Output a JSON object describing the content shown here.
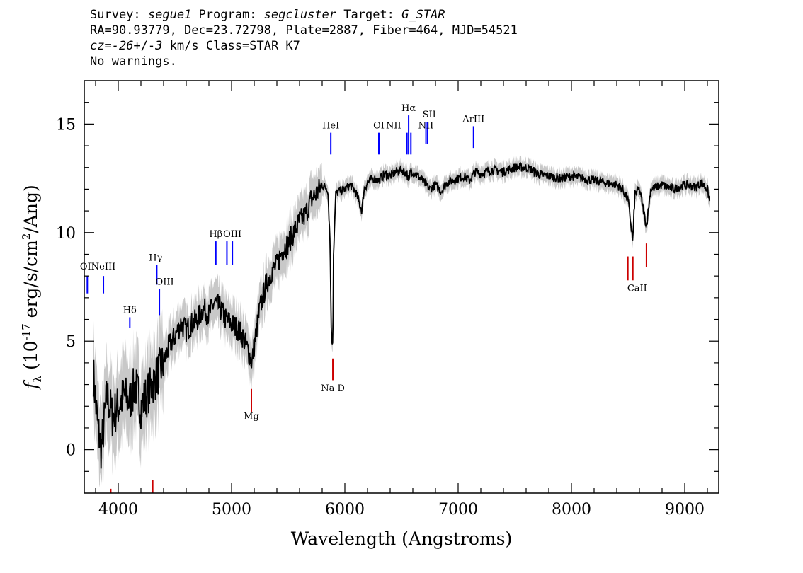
{
  "header": {
    "line1": {
      "survey_label": "Survey: ",
      "survey_value": "segue1",
      "program_label": " Program: ",
      "program_value": "segcluster",
      "target_label": " Target: ",
      "target_value": "G_STAR"
    },
    "line2": "RA=90.93779, Dec=23.72798, Plate=2887, Fiber=464, MJD=54521",
    "line3": {
      "cz_label": "cz",
      "cz_eq": "=",
      "cz_value": "-26",
      "cz_pm": "+/-",
      "cz_err": "3",
      "cz_rest": " km/s Class=STAR K7"
    },
    "line4": "No warnings."
  },
  "chart_data": {
    "type": "line",
    "xlabel": "Wavelength (Angstroms)",
    "ylabel_prefix": "f",
    "ylabel_sub": "λ",
    "ylabel_rest": " (10",
    "ylabel_exp": "-17",
    "ylabel_units": " erg/s/cm",
    "ylabel_exp2": "2",
    "ylabel_end": "/Ang)",
    "xlim": [
      3700,
      9300
    ],
    "ylim": [
      -2,
      17
    ],
    "x_ticks": [
      4000,
      5000,
      6000,
      7000,
      8000,
      9000
    ],
    "x_tick_labels": [
      "4000",
      "5000",
      "6000",
      "7000",
      "8000",
      "9000"
    ],
    "y_ticks": [
      0,
      5,
      10,
      15
    ],
    "y_tick_labels": [
      "0",
      "5",
      "10",
      "15"
    ],
    "grid": false,
    "series": [
      {
        "style": "smoothed flux",
        "color": "#000000",
        "x": [
          3780,
          3820,
          3850,
          3880,
          3900,
          3950,
          4000,
          4050,
          4100,
          4150,
          4200,
          4250,
          4300,
          4350,
          4400,
          4450,
          4500,
          4550,
          4600,
          4650,
          4700,
          4750,
          4800,
          4850,
          4900,
          4950,
          5000,
          5050,
          5100,
          5150,
          5180,
          5200,
          5250,
          5300,
          5350,
          5400,
          5450,
          5500,
          5550,
          5600,
          5650,
          5700,
          5750,
          5800,
          5850,
          5870,
          5880,
          5890,
          5895,
          5900,
          5920,
          5950,
          6000,
          6050,
          6100,
          6150,
          6170,
          6200,
          6250,
          6300,
          6350,
          6400,
          6450,
          6500,
          6550,
          6563,
          6580,
          6600,
          6650,
          6700,
          6750,
          6800,
          6850,
          6900,
          6950,
          7000,
          7050,
          7100,
          7150,
          7200,
          7300,
          7400,
          7500,
          7600,
          7650,
          7700,
          7800,
          7900,
          8000,
          8100,
          8200,
          8300,
          8400,
          8450,
          8500,
          8542,
          8560,
          8600,
          8662,
          8700,
          8800,
          8900,
          9000,
          9100,
          9150,
          9200,
          9220
        ],
        "y": [
          3.5,
          1.0,
          0.0,
          1.5,
          2.5,
          1.5,
          2.0,
          2.5,
          2.2,
          3.0,
          2.0,
          2.5,
          3.0,
          3.5,
          4.0,
          4.8,
          5.2,
          5.8,
          5.5,
          5.8,
          6.0,
          6.5,
          6.2,
          6.8,
          6.5,
          6.0,
          5.8,
          5.6,
          5.2,
          4.5,
          4.0,
          4.8,
          6.5,
          7.5,
          8.2,
          8.5,
          9.2,
          9.5,
          10.0,
          10.5,
          10.8,
          11.5,
          11.8,
          12.2,
          12.0,
          9.5,
          5.5,
          4.8,
          5.5,
          9.0,
          11.8,
          11.9,
          12.0,
          12.2,
          11.8,
          11.0,
          12.0,
          12.3,
          12.5,
          12.4,
          12.7,
          12.6,
          12.8,
          12.9,
          12.7,
          12.2,
          12.9,
          12.8,
          12.6,
          12.3,
          12.0,
          12.2,
          11.9,
          12.3,
          12.4,
          12.5,
          12.6,
          12.4,
          12.8,
          12.7,
          12.9,
          12.8,
          13.0,
          13.0,
          12.9,
          12.7,
          12.6,
          12.5,
          12.6,
          12.5,
          12.4,
          12.3,
          12.2,
          12.0,
          11.5,
          9.6,
          11.8,
          12.0,
          10.3,
          12.0,
          12.2,
          12.0,
          12.2,
          12.1,
          12.3,
          12.0,
          11.4
        ]
      }
    ],
    "emission_lines": [
      {
        "name": "OII",
        "x": 3727,
        "y_top": 7.2,
        "y_bot": 8.0,
        "color": "#0000ff"
      },
      {
        "name": "NeIII",
        "x": 3869,
        "y_top": 7.2,
        "y_bot": 8.0,
        "color": "#0000ff"
      },
      {
        "name": "Hδ",
        "x": 4102,
        "y_top": 5.6,
        "y_bot": 6.1,
        "color": "#0000ff"
      },
      {
        "name": "Hγ",
        "x": 4340,
        "y_top": 7.6,
        "y_bot": 8.5,
        "color": "#0000ff"
      },
      {
        "name": "OIII",
        "x": 4363,
        "y_top": 6.2,
        "y_bot": 7.4,
        "color": "#0000ff"
      },
      {
        "name": "Hβ",
        "x": 4861,
        "y_top": 8.5,
        "y_bot": 9.6,
        "color": "#0000ff"
      },
      {
        "name": "OIII",
        "x": 4959,
        "y_top": 8.5,
        "y_bot": 9.6,
        "color": "#0000ff"
      },
      {
        "name": "OIII",
        "x": 5007,
        "y_top": 8.5,
        "y_bot": 9.6,
        "color": "#0000ff"
      },
      {
        "name": "HeI",
        "x": 5876,
        "y_top": 13.6,
        "y_bot": 14.6,
        "color": "#0000ff"
      },
      {
        "name": "OI",
        "x": 6300,
        "y_top": 13.6,
        "y_bot": 14.6,
        "color": "#0000ff"
      },
      {
        "name": "NII",
        "x": 6548,
        "y_top": 13.6,
        "y_bot": 14.6,
        "color": "#0000ff"
      },
      {
        "name": "Hα",
        "x": 6563,
        "y_top": 13.6,
        "y_bot": 15.4,
        "color": "#0000ff"
      },
      {
        "name": "NII",
        "x": 6583,
        "y_top": 13.6,
        "y_bot": 14.6,
        "color": "#0000ff"
      },
      {
        "name": "SII",
        "x": 6716,
        "y_top": 14.1,
        "y_bot": 15.1,
        "color": "#0000ff"
      },
      {
        "name": "SII",
        "x": 6731,
        "y_top": 14.1,
        "y_bot": 15.1,
        "color": "#0000ff"
      },
      {
        "name": "ArIII",
        "x": 7136,
        "y_top": 13.9,
        "y_bot": 14.9,
        "color": "#0000ff"
      }
    ],
    "absorption_lines": [
      {
        "name": "Mg",
        "x": 5175,
        "y_top": 1.7,
        "y_bot": 2.8,
        "color": "#cc0000"
      },
      {
        "name": "Na D",
        "x": 5894,
        "y_top": 3.2,
        "y_bot": 4.2,
        "color": "#cc0000"
      },
      {
        "name": "CaII",
        "x": 8498,
        "y_top": 7.8,
        "y_bot": 8.9,
        "color": "#cc0000"
      },
      {
        "name": "CaII",
        "x": 8542,
        "y_top": 7.8,
        "y_bot": 8.9,
        "color": "#cc0000"
      },
      {
        "name": "CaII",
        "x": 8662,
        "y_top": 8.4,
        "y_bot": 9.5,
        "color": "#cc0000"
      },
      {
        "name": "",
        "x": 3934,
        "y_top": -2.0,
        "y_bot": -1.8,
        "color": "#cc0000"
      },
      {
        "name": "",
        "x": 4304,
        "y_top": -2.0,
        "y_bot": -1.4,
        "color": "#cc0000"
      }
    ],
    "line_labels": [
      {
        "text": "OII",
        "x": 3727,
        "y": 8.3
      },
      {
        "text": "NeIII",
        "x": 3869,
        "y": 8.3
      },
      {
        "text": "Hδ",
        "x": 4102,
        "y": 6.3
      },
      {
        "text": "Hγ",
        "x": 4330,
        "y": 8.7
      },
      {
        "text": "OIII",
        "x": 4410,
        "y": 7.6
      },
      {
        "text": "Hβ",
        "x": 4861,
        "y": 9.8
      },
      {
        "text": "OIII",
        "x": 5007,
        "y": 9.8
      },
      {
        "text": "HeI",
        "x": 5876,
        "y": 14.8
      },
      {
        "text": "OI",
        "x": 6300,
        "y": 14.8
      },
      {
        "text": "NII",
        "x": 6430,
        "y": 14.8
      },
      {
        "text": "Hα",
        "x": 6563,
        "y": 15.6
      },
      {
        "text": "NII",
        "x": 6715,
        "y": 14.8
      },
      {
        "text": "SII",
        "x": 6745,
        "y": 15.3
      },
      {
        "text": "ArIII",
        "x": 7136,
        "y": 15.1
      },
      {
        "text": "Mg",
        "x": 5175,
        "y": 1.4
      },
      {
        "text": "Na D",
        "x": 5894,
        "y": 2.7
      },
      {
        "text": "CaII",
        "x": 8580,
        "y": 7.3
      }
    ]
  }
}
